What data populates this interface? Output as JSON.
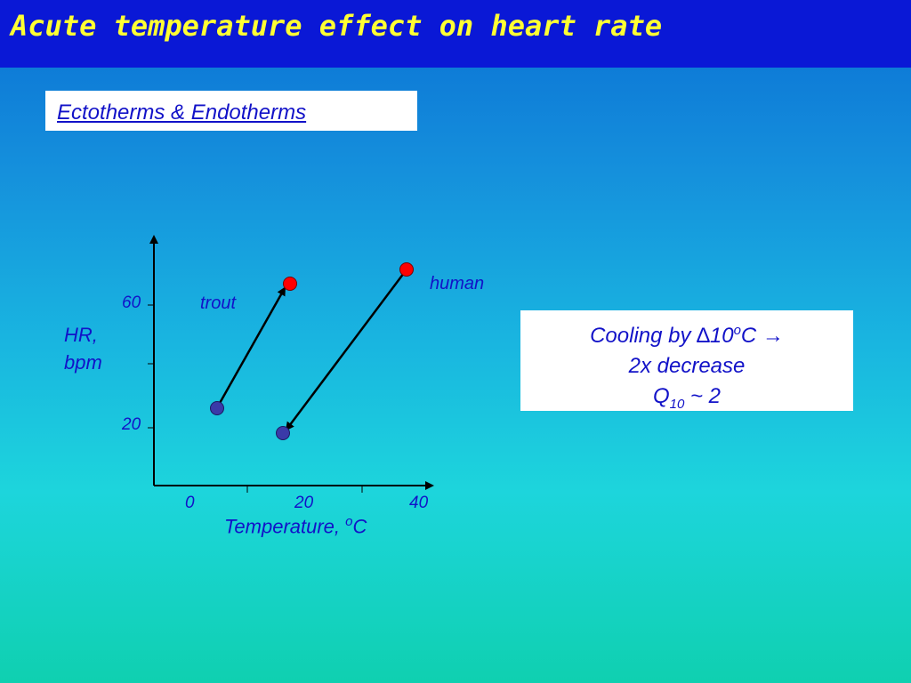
{
  "header": {
    "title": "Acute temperature effect on heart rate"
  },
  "subtitle": {
    "text": "Ectotherms & Endotherms"
  },
  "plot": {
    "y_axis": {
      "label_line1": "HR,",
      "label_line2": "bpm",
      "tick_60": "60",
      "tick_20": "20"
    },
    "x_axis": {
      "label_text": "Temperature, ",
      "label_sup": "o",
      "label_unit": "C",
      "tick_0": "0",
      "tick_20": "20",
      "tick_40": "40"
    },
    "series": {
      "trout": {
        "label": "trout",
        "warm_color": "#ff0000",
        "cold_color": "#3a3aa8"
      },
      "human": {
        "label": "human",
        "warm_color": "#ff0000",
        "cold_color": "#3a3aa8"
      }
    }
  },
  "cooling_box": {
    "line1_text": "Cooling by ",
    "delta": "∆",
    "line1_value": "10",
    "line1_sup": "o",
    "line1_unit": "C ",
    "arrow": "→",
    "line2": "2x decrease",
    "line3_q": "Q",
    "line3_sub": "10",
    "line3_rest": " ~ 2"
  }
}
